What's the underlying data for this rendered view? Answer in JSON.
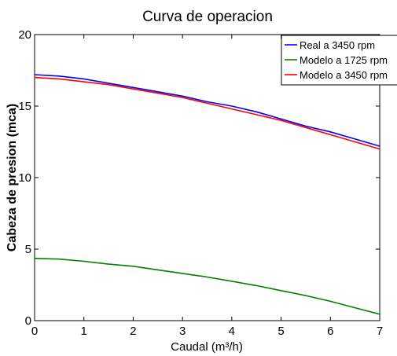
{
  "chart_data": {
    "type": "line",
    "title": "Curva de operacion",
    "xlabel": "Caudal (m³/h)",
    "ylabel": "Cabeza de presion (mca)",
    "xlim": [
      0,
      7
    ],
    "ylim": [
      0,
      20
    ],
    "xticks": [
      0,
      1,
      2,
      3,
      4,
      5,
      6,
      7
    ],
    "yticks": [
      0,
      5,
      10,
      15,
      20
    ],
    "grid": false,
    "legend_position": "top-right",
    "x": [
      0,
      0.5,
      1,
      1.5,
      2,
      2.5,
      3,
      3.5,
      4,
      4.5,
      5,
      5.5,
      6,
      6.5,
      7
    ],
    "series": [
      {
        "name": "Real a 3450 rpm",
        "color": "#0000ff",
        "values": [
          17.2,
          17.1,
          16.9,
          16.6,
          16.3,
          16.0,
          15.7,
          15.3,
          15.0,
          14.6,
          14.1,
          13.6,
          13.2,
          12.7,
          12.2
        ]
      },
      {
        "name": "Modelo a 1725 rpm",
        "color": "#008000",
        "values": [
          4.35,
          4.3,
          4.15,
          3.95,
          3.8,
          3.55,
          3.3,
          3.05,
          2.75,
          2.45,
          2.1,
          1.75,
          1.35,
          0.9,
          0.45
        ]
      },
      {
        "name": "Modelo a 3450 rpm",
        "color": "#ff0000",
        "values": [
          17.0,
          16.9,
          16.7,
          16.5,
          16.2,
          15.9,
          15.6,
          15.2,
          14.8,
          14.4,
          14.0,
          13.5,
          13.0,
          12.5,
          12.0
        ]
      }
    ]
  }
}
